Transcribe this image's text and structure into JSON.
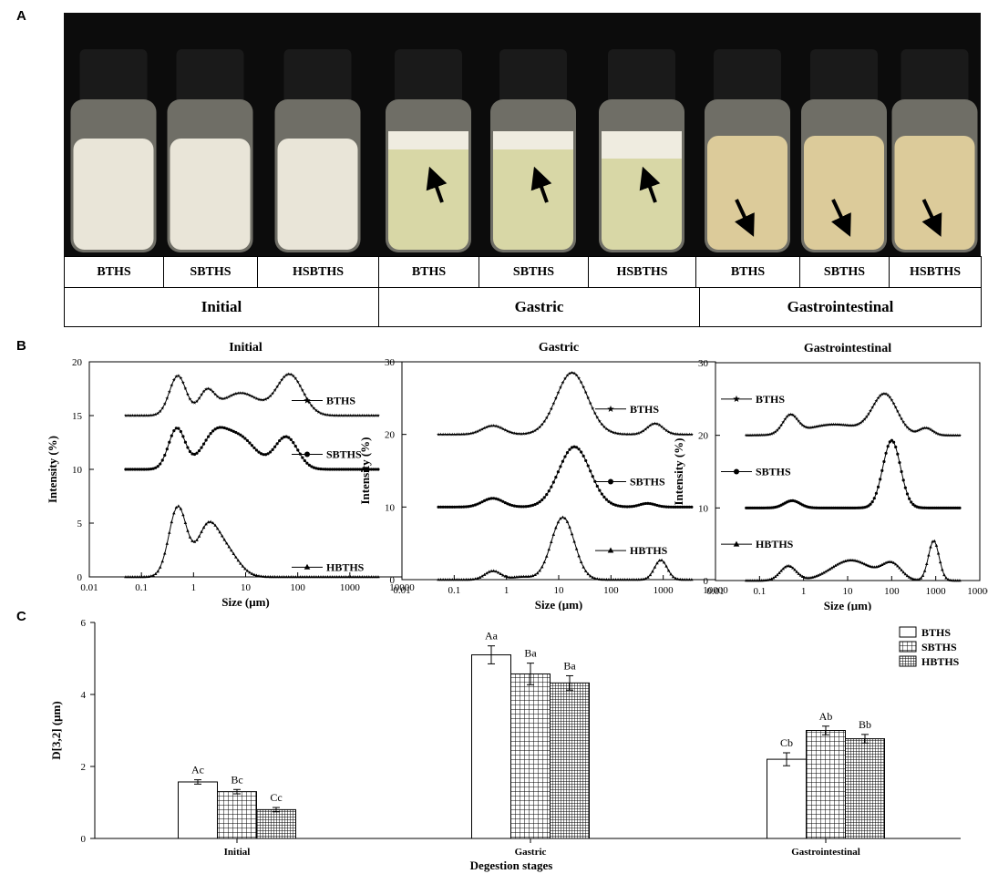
{
  "panel_labels": [
    "A",
    "B",
    "C"
  ],
  "panel_a": {
    "vials": [
      {
        "label": "BTHS",
        "stage": "Initial"
      },
      {
        "label": "SBTHS",
        "stage": "Initial"
      },
      {
        "label": "HSBTHS",
        "stage": "Initial"
      },
      {
        "label": "BTHS",
        "stage": "Gastric"
      },
      {
        "label": "SBTHS",
        "stage": "Gastric"
      },
      {
        "label": "HSBTHS",
        "stage": "Gastric"
      },
      {
        "label": "BTHS",
        "stage": "Gastrointestinal"
      },
      {
        "label": "SBTHS",
        "stage": "Gastrointestinal"
      },
      {
        "label": "HSBTHS",
        "stage": "Gastrointestinal"
      }
    ],
    "stages": [
      "Initial",
      "Gastric",
      "Gastrointestinal"
    ],
    "colors": {
      "initial_liquid": "#e9e5d8",
      "gastric_liquid": "#d8d7a6",
      "gastrointestinal_liquid": "#dccb9a",
      "cap": "#1a1a1a",
      "background": "#0c0c0c"
    }
  },
  "chart_data": [
    {
      "type": "line",
      "title": "Initial",
      "xlabel": "Size (μm)",
      "ylabel": "Intensity (%)",
      "xscale": "log",
      "xlim": [
        0.01,
        10000
      ],
      "ylim": [
        0,
        20
      ],
      "yticks": [
        0,
        5,
        10,
        15,
        20
      ],
      "xticks": [
        "0.01",
        "0.1",
        "1",
        "10",
        "100",
        "1000",
        "10000"
      ],
      "series": [
        {
          "name": "BTHS",
          "marker": "star",
          "baseline": 15,
          "peaks": [
            [
              0.5,
              3.7,
              0.16
            ],
            [
              1.8,
              2.1,
              0.15
            ],
            [
              8,
              2.1,
              0.35
            ],
            [
              70,
              3.8,
              0.25
            ]
          ]
        },
        {
          "name": "SBTHS",
          "marker": "circle",
          "baseline": 10,
          "peaks": [
            [
              0.48,
              3.8,
              0.16
            ],
            [
              2.5,
              3.0,
              0.25
            ],
            [
              8,
              2.8,
              0.3
            ],
            [
              60,
              3.0,
              0.22
            ]
          ]
        },
        {
          "name": "HBTHS",
          "marker": "triangle",
          "baseline": 0,
          "peaks": [
            [
              0.5,
              6.5,
              0.17
            ],
            [
              1.8,
              4.0,
              0.2
            ],
            [
              4,
              2.5,
              0.25
            ]
          ]
        }
      ]
    },
    {
      "type": "line",
      "title": "Gastric",
      "xlabel": "Size (μm)",
      "ylabel": "Intensity (%)",
      "xscale": "log",
      "xlim": [
        0.01,
        10000
      ],
      "ylim": [
        0,
        30
      ],
      "yticks": [
        0,
        10,
        20,
        30
      ],
      "xticks": [
        "0.01",
        "0.1",
        "1",
        "10",
        "100",
        "1000",
        "10000"
      ],
      "series": [
        {
          "name": "BTHS",
          "marker": "star",
          "baseline": 20,
          "peaks": [
            [
              0.55,
              1.2,
              0.2
            ],
            [
              18,
              8.5,
              0.3
            ],
            [
              700,
              1.5,
              0.15
            ]
          ]
        },
        {
          "name": "SBTHS",
          "marker": "circle",
          "baseline": 10,
          "peaks": [
            [
              0.55,
              1.2,
              0.2
            ],
            [
              20,
              8.3,
              0.3
            ],
            [
              500,
              0.5,
              0.15
            ]
          ]
        },
        {
          "name": "HBTHS",
          "marker": "triangle",
          "baseline": 0,
          "peaks": [
            [
              0.55,
              1.2,
              0.15
            ],
            [
              2,
              0.4,
              0.2
            ],
            [
              12,
              8.6,
              0.22
            ],
            [
              900,
              2.7,
              0.12
            ]
          ]
        }
      ]
    },
    {
      "type": "line",
      "title": "Gastrointestinal",
      "xlabel": "Size (μm)",
      "ylabel": "Intensity (%)",
      "xscale": "log",
      "xlim": [
        0.01,
        10000
      ],
      "ylim": [
        0,
        30
      ],
      "yticks": [
        0,
        10,
        20,
        30
      ],
      "xticks": [
        "0.01",
        "0.1",
        "1",
        "10",
        "100",
        "1000",
        "10000"
      ],
      "series": [
        {
          "name": "BTHS",
          "marker": "star",
          "baseline": 20,
          "peaks": [
            [
              0.5,
              2.5,
              0.17
            ],
            [
              5,
              1.5,
              0.6
            ],
            [
              70,
              5.5,
              0.28
            ],
            [
              600,
              1.0,
              0.15
            ]
          ]
        },
        {
          "name": "SBTHS",
          "marker": "circle",
          "baseline": 10,
          "peaks": [
            [
              0.55,
              1.0,
              0.18
            ],
            [
              100,
              9.3,
              0.2
            ]
          ]
        },
        {
          "name": "HBTHS",
          "marker": "triangle",
          "baseline": 0,
          "peaks": [
            [
              0.45,
              2.0,
              0.18
            ],
            [
              12,
              2.8,
              0.45
            ],
            [
              100,
              2.2,
              0.22
            ],
            [
              900,
              5.5,
              0.12
            ]
          ]
        }
      ]
    },
    {
      "type": "bar",
      "xlabel": "Degestion stages",
      "ylabel": "D[3,2] (μm)",
      "ylim": [
        0,
        6
      ],
      "yticks": [
        0,
        2,
        4,
        6
      ],
      "categories": [
        "Initial",
        "Gastric",
        "Gastrointestinal"
      ],
      "legend_position": "top-right",
      "series": [
        {
          "name": "BTHS",
          "pattern": "none",
          "values": [
            1.57,
            5.1,
            2.2
          ],
          "errors": [
            0.06,
            0.25,
            0.18
          ],
          "labels": [
            "Ac",
            "Aa",
            "Cb"
          ]
        },
        {
          "name": "SBTHS",
          "pattern": "grid",
          "values": [
            1.3,
            4.57,
            3.0
          ],
          "errors": [
            0.06,
            0.3,
            0.12
          ],
          "labels": [
            "Bc",
            "Ba",
            "Ab"
          ]
        },
        {
          "name": "HBTHS",
          "pattern": "fine-grid",
          "values": [
            0.8,
            4.32,
            2.77
          ],
          "errors": [
            0.06,
            0.2,
            0.12
          ],
          "labels": [
            "Cc",
            "Ba",
            "Bb"
          ]
        }
      ]
    }
  ]
}
